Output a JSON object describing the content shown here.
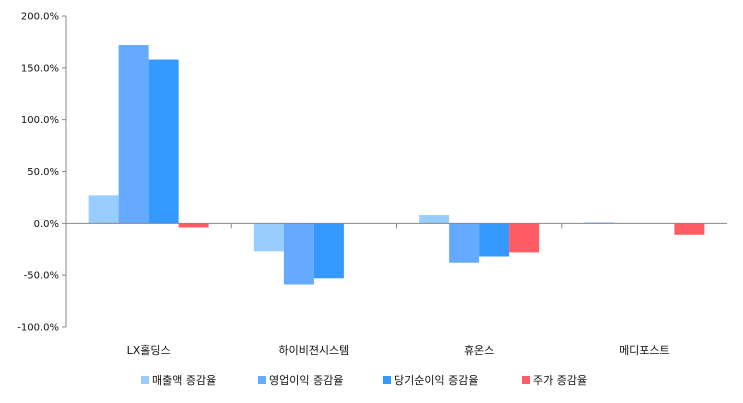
{
  "chart_data": {
    "type": "bar",
    "title": "",
    "xlabel": "",
    "ylabel": "",
    "categories": [
      "LX홀딩스",
      "하이비젼시스템",
      "휴온스",
      "메디포스트"
    ],
    "ylim": [
      -100,
      200
    ],
    "yticks": [
      200,
      150,
      100,
      50,
      0,
      -50,
      -100
    ],
    "ytick_labels": [
      "200.0%",
      "150.0%",
      "100.0%",
      "50.0%",
      "0.0%",
      "-50.0%",
      "-100.0%"
    ],
    "grid": false,
    "legend_position": "bottom",
    "series": [
      {
        "name": "매출액 증감율",
        "color": "#99ccff",
        "values": [
          27,
          -27,
          8,
          1
        ]
      },
      {
        "name": "영업이익 증감율",
        "color": "#66aaff",
        "values": [
          172,
          -59,
          -38,
          0
        ]
      },
      {
        "name": "당기순이익 증감율",
        "color": "#3399ff",
        "values": [
          158,
          -53,
          -32,
          0
        ]
      },
      {
        "name": "주가 증감율",
        "color": "#ff5b67",
        "values": [
          -4,
          0,
          -28,
          -11
        ]
      }
    ]
  }
}
